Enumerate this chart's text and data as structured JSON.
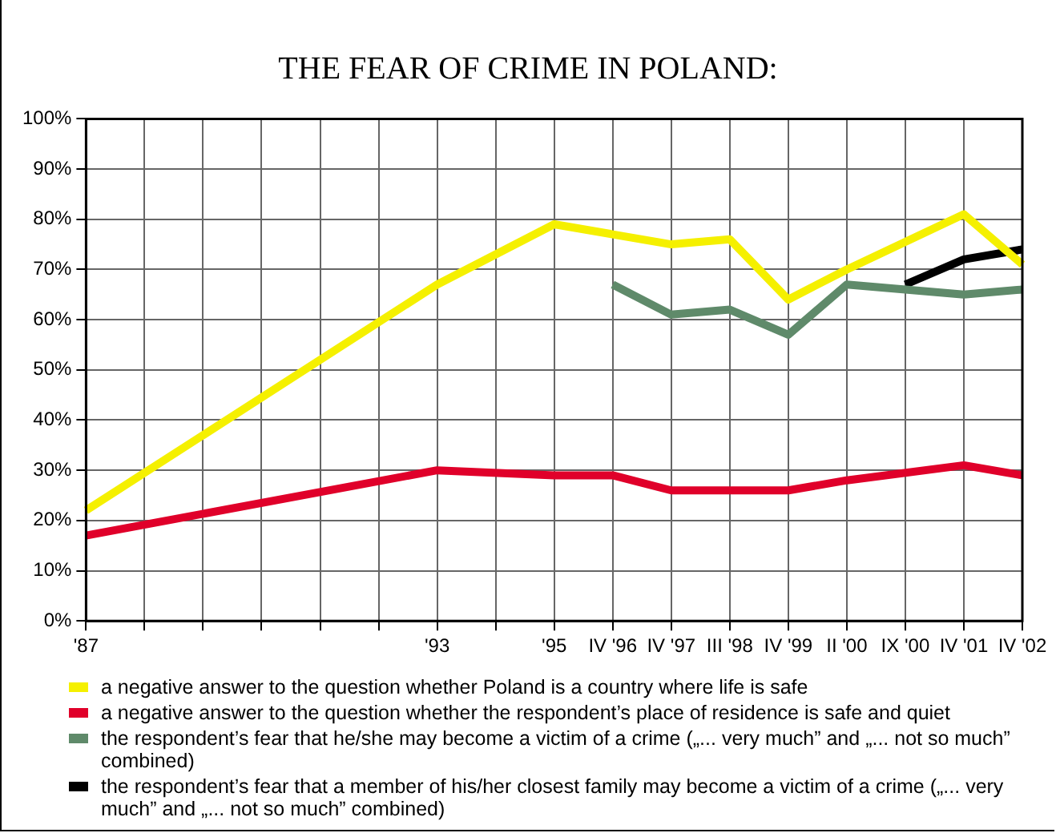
{
  "chart_data": {
    "type": "line",
    "title": "THE FEAR OF CRIME IN POLAND:",
    "categories": [
      "'87",
      null,
      null,
      null,
      null,
      null,
      "'93",
      null,
      "'95",
      "IV '96",
      "IV '97",
      "III '98",
      "IV '99",
      "II '00",
      "IX '00",
      "IV '01",
      "IV '02"
    ],
    "series": [
      {
        "name": "a negative answer to the question whether Poland is a country where life is safe",
        "color": "#f5f000",
        "values": [
          22,
          null,
          null,
          null,
          null,
          null,
          67,
          null,
          79,
          77,
          75,
          76,
          64,
          70,
          null,
          81,
          71
        ]
      },
      {
        "name": "a negative answer to the question whether the respondent’s place of residence is safe and quiet",
        "color": "#e0002a",
        "values": [
          17,
          null,
          null,
          null,
          null,
          null,
          30,
          null,
          29,
          29,
          26,
          26,
          26,
          28,
          null,
          31,
          29
        ]
      },
      {
        "name": "the respondent’s fear that he/she may become a victim of a crime („... very much” and „... not so much” combined)",
        "color": "#5f8a6a",
        "values": [
          null,
          null,
          null,
          null,
          null,
          null,
          null,
          null,
          null,
          67,
          61,
          62,
          57,
          67,
          66,
          65,
          66
        ]
      },
      {
        "name": "the respondent’s fear that a member of his/her closest family may become a victim of a crime („... very much” and „... not so much” combined)",
        "color": "#000000",
        "values": [
          null,
          null,
          null,
          null,
          null,
          null,
          null,
          null,
          null,
          null,
          null,
          null,
          null,
          null,
          67,
          72,
          74
        ]
      }
    ],
    "ylim": [
      0,
      100
    ],
    "yticks": [
      {
        "value": 0,
        "label": "0%"
      },
      {
        "value": 10,
        "label": "10%"
      },
      {
        "value": 20,
        "label": "20%"
      },
      {
        "value": 30,
        "label": "30%"
      },
      {
        "value": 40,
        "label": "40%"
      },
      {
        "value": 50,
        "label": "50%"
      },
      {
        "value": 60,
        "label": "60%"
      },
      {
        "value": 70,
        "label": "70%"
      },
      {
        "value": 80,
        "label": "80%"
      },
      {
        "value": 90,
        "label": "90%"
      },
      {
        "value": 100,
        "label": "100%"
      }
    ],
    "grid": true,
    "legend": "bottom",
    "marker": "none",
    "line_style": "solid"
  }
}
